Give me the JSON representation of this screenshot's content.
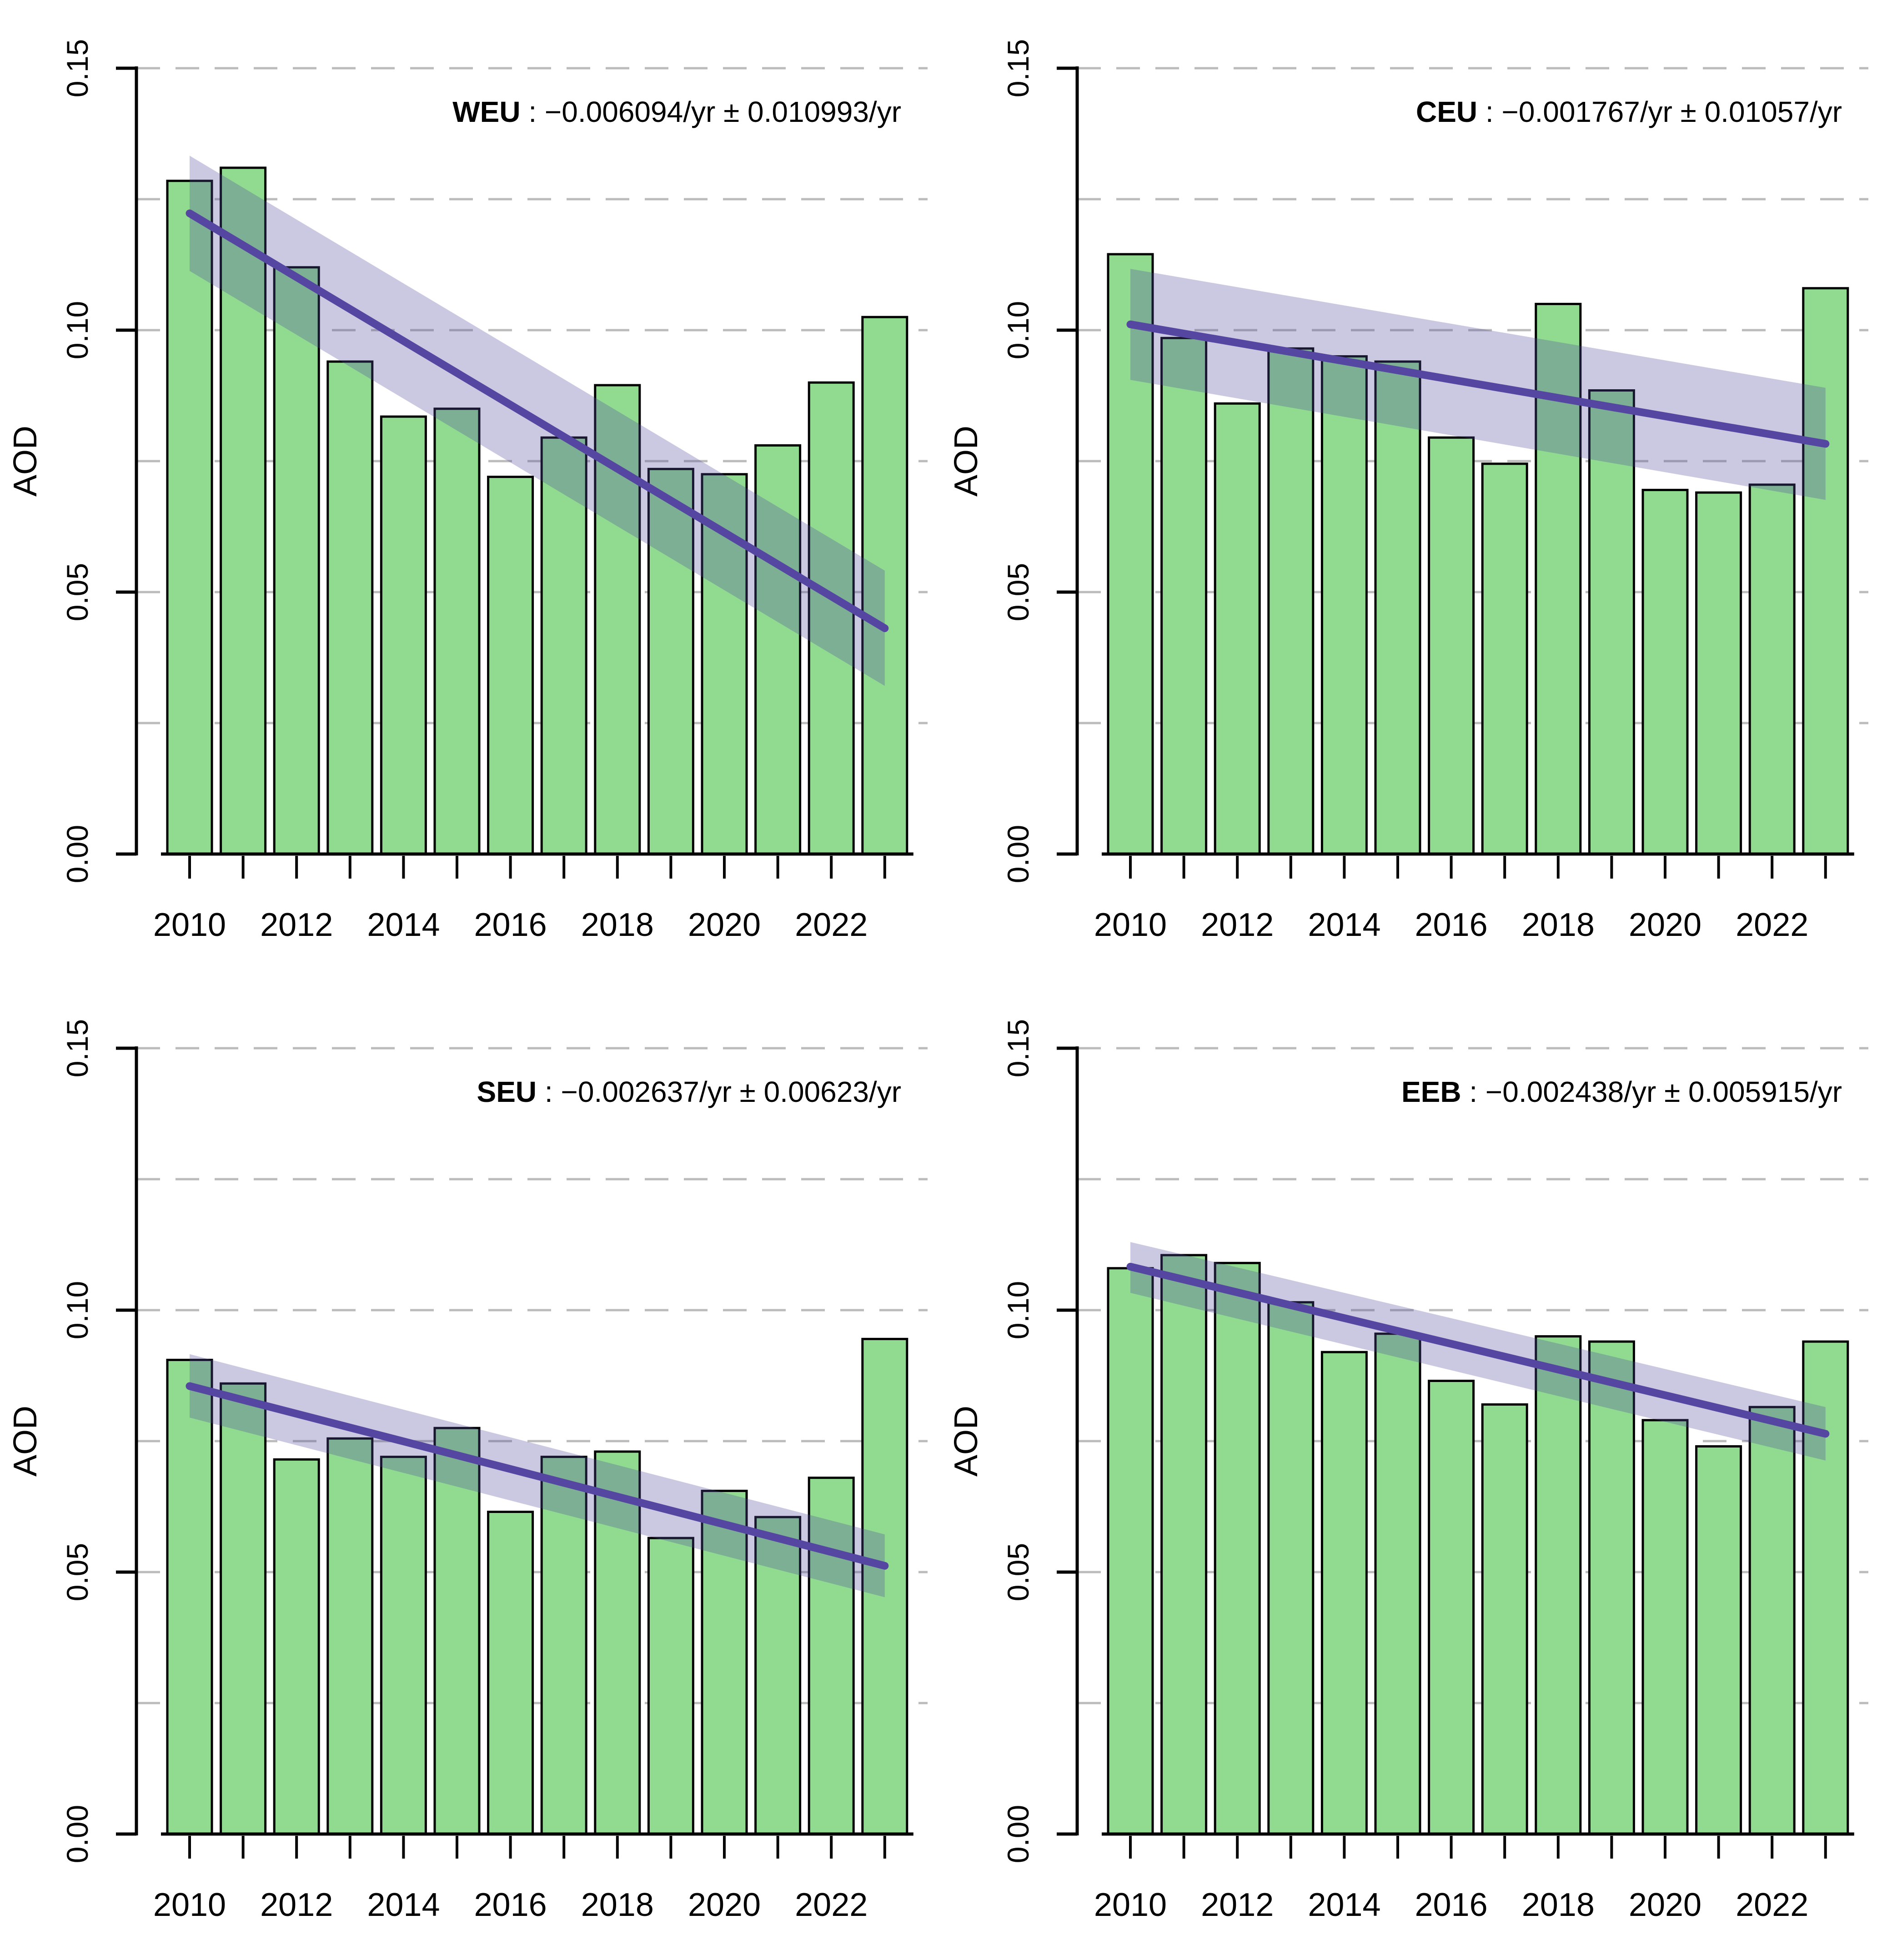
{
  "figure": {
    "ylabel": "AOD",
    "y_axis_ticks": [
      0,
      0.05,
      0.1,
      0.15
    ],
    "y_tick_labels": [
      "0.00",
      "0.05",
      "0.10",
      "0.15"
    ],
    "grid_step": 0.025,
    "title_separator": " :  ",
    "colors": {
      "background": "#ffffff",
      "bar_fill": "#90DB90",
      "bar_stroke": "#000000",
      "trend_line": "#5446A1",
      "band_fill": "rgba(84,72,158,0.30)",
      "gridline": "#BBBBBB",
      "axis": "#000000",
      "text": "#000000"
    }
  },
  "chart_data": [
    {
      "type": "bar",
      "region": "WEU",
      "title_value": "−0.006094/yr ± 0.010993/yr",
      "xlabel": "",
      "ylabel": "AOD",
      "ylim": [
        0,
        0.15
      ],
      "grid": "dashed-horizontal",
      "legend_position": "none",
      "categories": [
        2010,
        2011,
        2012,
        2013,
        2014,
        2015,
        2016,
        2017,
        2018,
        2019,
        2020,
        2021,
        2022,
        2023
      ],
      "x_labeled_ticks": [
        2010,
        2012,
        2014,
        2016,
        2018,
        2020,
        2022
      ],
      "values": [
        0.1285,
        0.131,
        0.112,
        0.094,
        0.0835,
        0.085,
        0.072,
        0.0795,
        0.0895,
        0.0735,
        0.0725,
        0.078,
        0.09,
        0.1025
      ],
      "trend": {
        "start": 0.1223,
        "end": 0.0431
      },
      "band": {
        "start_top": 0.1333,
        "start_bottom": 0.1113,
        "end_top": 0.0541,
        "end_bottom": 0.0321
      }
    },
    {
      "type": "bar",
      "region": "CEU",
      "title_value": "−0.001767/yr ± 0.01057/yr",
      "xlabel": "",
      "ylabel": "AOD",
      "ylim": [
        0,
        0.15
      ],
      "grid": "dashed-horizontal",
      "legend_position": "none",
      "categories": [
        2010,
        2011,
        2012,
        2013,
        2014,
        2015,
        2016,
        2017,
        2018,
        2019,
        2020,
        2021,
        2022,
        2023
      ],
      "x_labeled_ticks": [
        2010,
        2012,
        2014,
        2016,
        2018,
        2020,
        2022
      ],
      "values": [
        0.1145,
        0.0985,
        0.086,
        0.0965,
        0.095,
        0.094,
        0.0795,
        0.0745,
        0.105,
        0.0885,
        0.0695,
        0.069,
        0.0705,
        0.108
      ],
      "trend": {
        "start": 0.1011,
        "end": 0.0783
      },
      "band": {
        "start_top": 0.1117,
        "start_bottom": 0.0905,
        "end_top": 0.089,
        "end_bottom": 0.0676
      }
    },
    {
      "type": "bar",
      "region": "SEU",
      "title_value": "−0.002637/yr ± 0.00623/yr",
      "xlabel": "",
      "ylabel": "AOD",
      "ylim": [
        0,
        0.15
      ],
      "grid": "dashed-horizontal",
      "legend_position": "none",
      "categories": [
        2010,
        2011,
        2012,
        2013,
        2014,
        2015,
        2016,
        2017,
        2018,
        2019,
        2020,
        2021,
        2022,
        2023
      ],
      "x_labeled_ticks": [
        2010,
        2012,
        2014,
        2016,
        2018,
        2020,
        2022
      ],
      "values": [
        0.0905,
        0.086,
        0.0715,
        0.0755,
        0.072,
        0.0775,
        0.0615,
        0.072,
        0.073,
        0.0565,
        0.0655,
        0.0605,
        0.068,
        0.0945
      ],
      "trend": {
        "start": 0.0855,
        "end": 0.0512
      },
      "band": {
        "start_top": 0.0916,
        "start_bottom": 0.0795,
        "end_top": 0.0572,
        "end_bottom": 0.0452
      }
    },
    {
      "type": "bar",
      "region": "EEB",
      "title_value": "−0.002438/yr ± 0.005915/yr",
      "xlabel": "",
      "ylabel": "AOD",
      "ylim": [
        0,
        0.15
      ],
      "grid": "dashed-horizontal",
      "legend_position": "none",
      "categories": [
        2010,
        2011,
        2012,
        2013,
        2014,
        2015,
        2016,
        2017,
        2018,
        2019,
        2020,
        2021,
        2022,
        2023
      ],
      "x_labeled_ticks": [
        2010,
        2012,
        2014,
        2016,
        2018,
        2020,
        2022
      ],
      "values": [
        0.108,
        0.1105,
        0.109,
        0.1015,
        0.092,
        0.0955,
        0.0865,
        0.082,
        0.095,
        0.094,
        0.079,
        0.074,
        0.0815,
        0.094
      ],
      "trend": {
        "start": 0.1083,
        "end": 0.0764
      },
      "band": {
        "start_top": 0.113,
        "start_bottom": 0.1033,
        "end_top": 0.0815,
        "end_bottom": 0.0713
      }
    }
  ]
}
